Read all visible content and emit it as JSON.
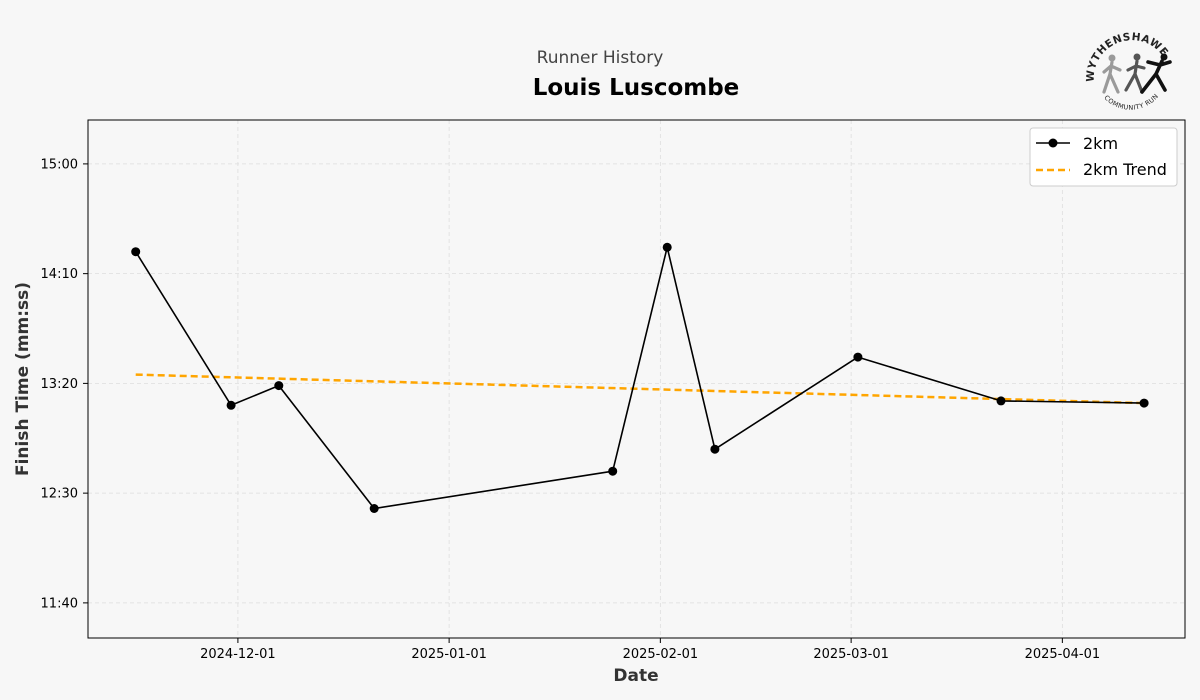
{
  "header": {
    "subtitle": "Runner History",
    "title": "Louis Luscombe"
  },
  "logo": {
    "top_text": "WYTHENSHAWE",
    "bottom_text": "COMMUNITY RUN"
  },
  "chart_data": {
    "type": "line",
    "title": "Louis Luscombe",
    "subtitle": "Runner History",
    "xlabel": "Date",
    "ylabel": "Finish Time (mm:ss)",
    "x_ticks": [
      "2024-12-01",
      "2025-01-01",
      "2025-02-01",
      "2025-03-01",
      "2025-04-01"
    ],
    "y_ticks": [
      "11:40",
      "12:30",
      "13:20",
      "14:10",
      "15:00"
    ],
    "xlim": [
      "2024-11-09",
      "2025-04-19"
    ],
    "ylim": [
      "11:24",
      "15:20"
    ],
    "grid": true,
    "legend_position": "top-right",
    "series": [
      {
        "name": "2km",
        "color": "#000000",
        "marker": "circle",
        "points": [
          {
            "x": "2024-11-16",
            "y": "14:20"
          },
          {
            "x": "2024-11-30",
            "y": "13:10"
          },
          {
            "x": "2024-12-07",
            "y": "13:19"
          },
          {
            "x": "2024-12-21",
            "y": "12:23"
          },
          {
            "x": "2025-01-25",
            "y": "12:40"
          },
          {
            "x": "2025-02-02",
            "y": "14:22"
          },
          {
            "x": "2025-02-09",
            "y": "12:50"
          },
          {
            "x": "2025-03-02",
            "y": "13:32"
          },
          {
            "x": "2025-03-23",
            "y": "13:12"
          },
          {
            "x": "2025-04-13",
            "y": "13:11"
          }
        ]
      },
      {
        "name": "2km Trend",
        "color": "#FFA500",
        "style": "dashed",
        "points": [
          {
            "x": "2024-11-16",
            "y": "13:24"
          },
          {
            "x": "2025-04-13",
            "y": "13:11"
          }
        ]
      }
    ]
  }
}
